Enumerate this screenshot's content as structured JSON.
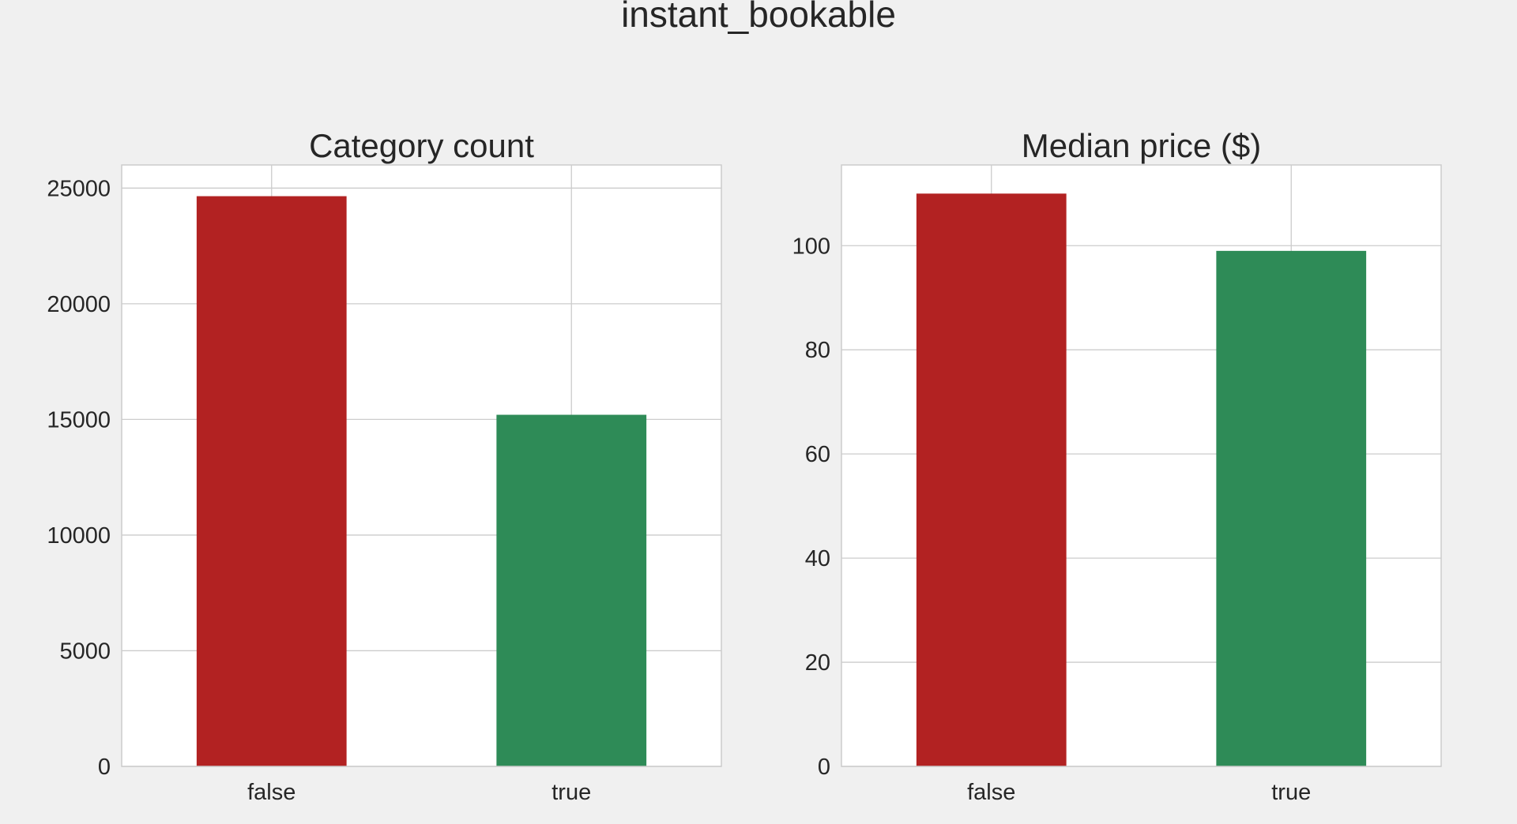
{
  "figure_title": "instant_bookable",
  "colors": {
    "background": "#f0f0f0",
    "plot_bg": "#ffffff",
    "grid": "#cccccc",
    "false_bar": "#b22222",
    "true_bar": "#2e8b57"
  },
  "chart_data": [
    {
      "type": "bar",
      "title": "Category count",
      "xlabel": "",
      "ylabel": "",
      "categories": [
        "false",
        "true"
      ],
      "values": [
        24650,
        15200
      ],
      "bar_colors": [
        "#b22222",
        "#2e8b57"
      ],
      "ylim": [
        0,
        26000
      ],
      "yticks": [
        0,
        5000,
        10000,
        15000,
        20000,
        25000
      ],
      "grid": true,
      "legend": "none"
    },
    {
      "type": "bar",
      "title": "Median price ($)",
      "xlabel": "",
      "ylabel": "",
      "categories": [
        "false",
        "true"
      ],
      "values": [
        110,
        99
      ],
      "bar_colors": [
        "#b22222",
        "#2e8b57"
      ],
      "ylim": [
        0,
        115.5
      ],
      "yticks": [
        0,
        20,
        40,
        60,
        80,
        100
      ],
      "grid": true,
      "legend": "none"
    }
  ]
}
